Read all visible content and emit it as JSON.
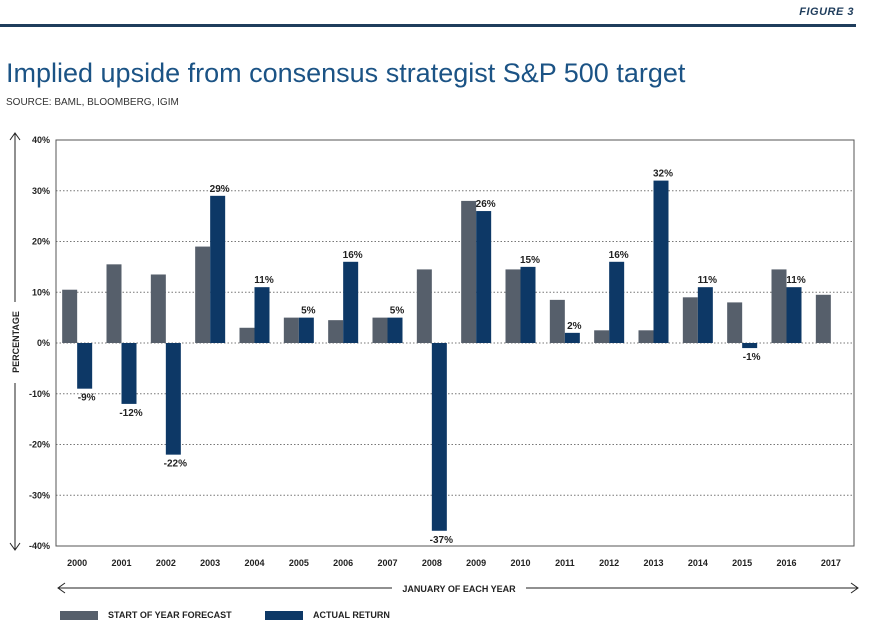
{
  "figure_label": "FIGURE 3",
  "title": "Implied upside from consensus strategist S&P 500 target",
  "source": "SOURCE: BAML, BLOOMBERG, IGIM",
  "colors": {
    "forecast": "#565f6b",
    "actual": "#0d3866",
    "title": "#1b5385"
  },
  "chart_data": {
    "type": "bar",
    "title": "Implied upside from consensus strategist S&P 500 target",
    "xlabel": "JANUARY OF EACH YEAR",
    "ylabel": "PERCENTAGE",
    "ylim": [
      -40,
      40
    ],
    "yticks": [
      40,
      30,
      20,
      10,
      0,
      -10,
      -20,
      -30,
      -40
    ],
    "ytick_labels": [
      "40%",
      "30%",
      "20%",
      "10%",
      "0%",
      "-10%",
      "-20%",
      "-30%",
      "-40%"
    ],
    "grid": "horizontal dotted",
    "legend": "bottom-left",
    "categories": [
      "2000",
      "2001",
      "2002",
      "2003",
      "2004",
      "2005",
      "2006",
      "2007",
      "2008",
      "2009",
      "2010",
      "2011",
      "2012",
      "2013",
      "2014",
      "2015",
      "2016",
      "2017"
    ],
    "series": [
      {
        "name": "START OF YEAR FORECAST",
        "values": [
          10.5,
          15.5,
          13.5,
          19,
          3,
          5,
          4.5,
          5,
          14.5,
          28,
          14.5,
          8.5,
          2.5,
          2.5,
          9,
          8,
          14.5,
          9.5
        ]
      },
      {
        "name": "ACTUAL RETURN",
        "values": [
          -9,
          -12,
          -22,
          29,
          11,
          5,
          16,
          5,
          -37,
          26,
          15,
          2,
          16,
          32,
          11,
          -1,
          11,
          null
        ],
        "labels": [
          "-9%",
          "-12%",
          "-22%",
          "29%",
          "11%",
          "5%",
          "16%",
          "5%",
          "-37%",
          "26%",
          "15%",
          "2%",
          "16%",
          "32%",
          "11%",
          "-1%",
          "11%",
          ""
        ]
      }
    ]
  }
}
